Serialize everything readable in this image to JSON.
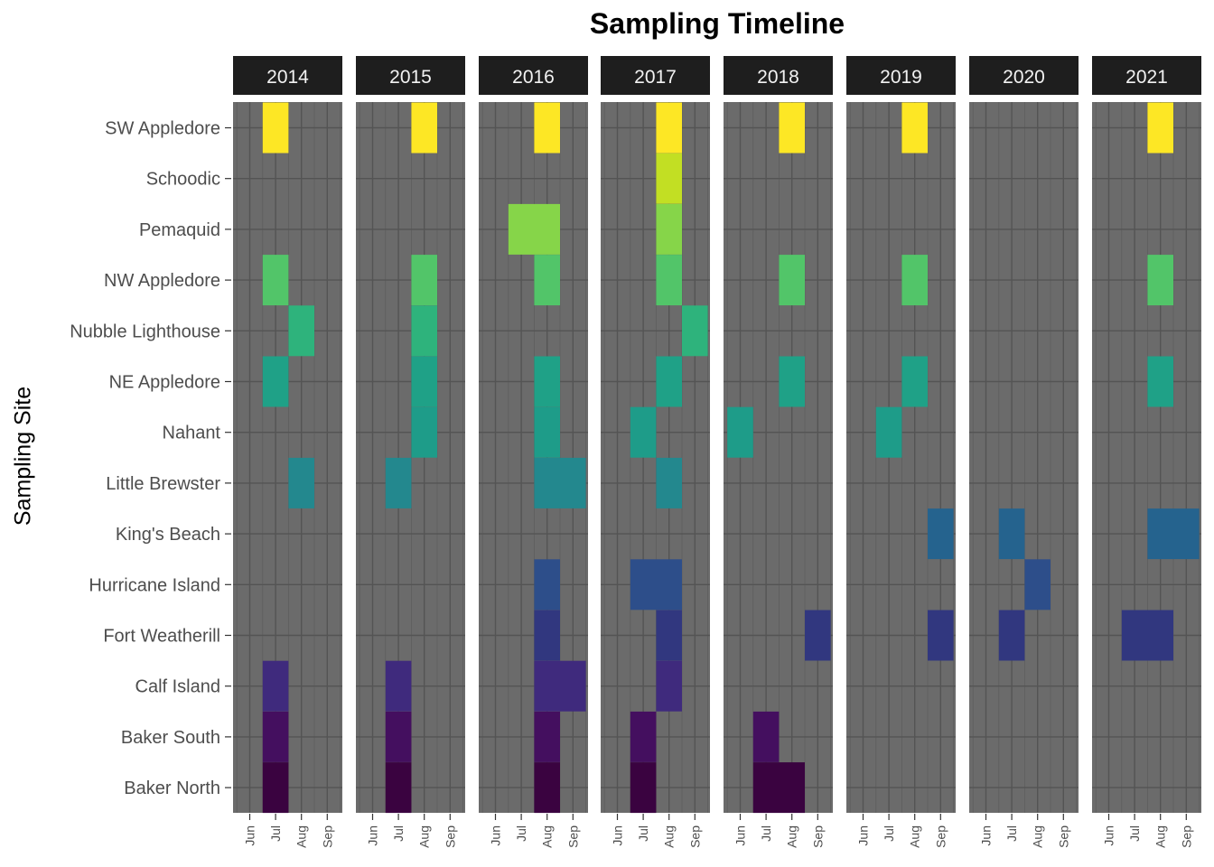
{
  "chart_data": {
    "type": "heatmap",
    "title": "Sampling Timeline",
    "xlabel": "",
    "ylabel": "Sampling Site",
    "facets": [
      "2014",
      "2015",
      "2016",
      "2017",
      "2018",
      "2019",
      "2020",
      "2021"
    ],
    "months": [
      "Jun",
      "Jul",
      "Aug",
      "Sep"
    ],
    "sites": [
      "SW Appledore",
      "Schoodic",
      "Pemaquid",
      "NW Appledore",
      "Nubble Lighthouse",
      "NE Appledore",
      "Nahant",
      "Little Brewster",
      "King's Beach",
      "Hurricane Island",
      "Fort Weatherill",
      "Calf Island",
      "Baker South",
      "Baker North"
    ],
    "site_colors": {
      "SW Appledore": "#FDE725",
      "Schoodic": "#C2DF23",
      "Pemaquid": "#86D549",
      "NW Appledore": "#52C569",
      "Nubble Lighthouse": "#2EB37C",
      "NE Appledore": "#1FA187",
      "Nahant": "#1E9C89",
      "Little Brewster": "#23888E",
      "King's Beach": "#25638E",
      "Hurricane Island": "#2D4E8A",
      "Fort Weatherill": "#31377F",
      "Calf Island": "#3F2A7D",
      "Baker South": "#440F5F",
      "Baker North": "#3A0340"
    },
    "panel_background": "#6B6B6B",
    "strip_background": "#1E1E1E",
    "records": [
      {
        "year": "2014",
        "site": "SW Appledore",
        "start": "Jul",
        "end": "Jul"
      },
      {
        "year": "2014",
        "site": "NW Appledore",
        "start": "Jul",
        "end": "Jul"
      },
      {
        "year": "2014",
        "site": "Nubble Lighthouse",
        "start": "Aug",
        "end": "Aug"
      },
      {
        "year": "2014",
        "site": "NE Appledore",
        "start": "Jul",
        "end": "Jul"
      },
      {
        "year": "2014",
        "site": "Little Brewster",
        "start": "Aug",
        "end": "Aug"
      },
      {
        "year": "2014",
        "site": "Calf Island",
        "start": "Jul",
        "end": "Jul"
      },
      {
        "year": "2014",
        "site": "Baker South",
        "start": "Jul",
        "end": "Jul"
      },
      {
        "year": "2014",
        "site": "Baker North",
        "start": "Jul",
        "end": "Jul"
      },
      {
        "year": "2015",
        "site": "SW Appledore",
        "start": "Aug",
        "end": "Aug"
      },
      {
        "year": "2015",
        "site": "NW Appledore",
        "start": "Aug",
        "end": "Aug"
      },
      {
        "year": "2015",
        "site": "Nubble Lighthouse",
        "start": "Aug",
        "end": "Aug"
      },
      {
        "year": "2015",
        "site": "NE Appledore",
        "start": "Aug",
        "end": "Aug"
      },
      {
        "year": "2015",
        "site": "Nahant",
        "start": "Aug",
        "end": "Aug"
      },
      {
        "year": "2015",
        "site": "Little Brewster",
        "start": "Jul",
        "end": "Jul"
      },
      {
        "year": "2015",
        "site": "Calf Island",
        "start": "Jul",
        "end": "Jul"
      },
      {
        "year": "2015",
        "site": "Baker South",
        "start": "Jul",
        "end": "Jul"
      },
      {
        "year": "2015",
        "site": "Baker North",
        "start": "Jul",
        "end": "Jul"
      },
      {
        "year": "2016",
        "site": "SW Appledore",
        "start": "Aug",
        "end": "Aug"
      },
      {
        "year": "2016",
        "site": "Pemaquid",
        "start": "Jul",
        "end": "Aug"
      },
      {
        "year": "2016",
        "site": "NW Appledore",
        "start": "Aug",
        "end": "Aug"
      },
      {
        "year": "2016",
        "site": "NE Appledore",
        "start": "Aug",
        "end": "Aug"
      },
      {
        "year": "2016",
        "site": "Nahant",
        "start": "Aug",
        "end": "Aug"
      },
      {
        "year": "2016",
        "site": "Little Brewster",
        "start": "Aug",
        "end": "Sep"
      },
      {
        "year": "2016",
        "site": "Hurricane Island",
        "start": "Aug",
        "end": "Aug"
      },
      {
        "year": "2016",
        "site": "Fort Weatherill",
        "start": "Aug",
        "end": "Aug"
      },
      {
        "year": "2016",
        "site": "Calf Island",
        "start": "Aug",
        "end": "Sep"
      },
      {
        "year": "2016",
        "site": "Baker South",
        "start": "Aug",
        "end": "Aug"
      },
      {
        "year": "2016",
        "site": "Baker North",
        "start": "Aug",
        "end": "Aug"
      },
      {
        "year": "2017",
        "site": "SW Appledore",
        "start": "Aug",
        "end": "Aug"
      },
      {
        "year": "2017",
        "site": "Schoodic",
        "start": "Aug",
        "end": "Aug"
      },
      {
        "year": "2017",
        "site": "Pemaquid",
        "start": "Aug",
        "end": "Aug"
      },
      {
        "year": "2017",
        "site": "NW Appledore",
        "start": "Aug",
        "end": "Aug"
      },
      {
        "year": "2017",
        "site": "Nubble Lighthouse",
        "start": "Sep",
        "end": "Sep"
      },
      {
        "year": "2017",
        "site": "NE Appledore",
        "start": "Aug",
        "end": "Aug"
      },
      {
        "year": "2017",
        "site": "Nahant",
        "start": "Jul",
        "end": "Jul"
      },
      {
        "year": "2017",
        "site": "Little Brewster",
        "start": "Aug",
        "end": "Aug"
      },
      {
        "year": "2017",
        "site": "Hurricane Island",
        "start": "Jul",
        "end": "Aug"
      },
      {
        "year": "2017",
        "site": "Fort Weatherill",
        "start": "Aug",
        "end": "Aug"
      },
      {
        "year": "2017",
        "site": "Calf Island",
        "start": "Aug",
        "end": "Aug"
      },
      {
        "year": "2017",
        "site": "Baker South",
        "start": "Jul",
        "end": "Jul"
      },
      {
        "year": "2017",
        "site": "Baker North",
        "start": "Jul",
        "end": "Jul"
      },
      {
        "year": "2018",
        "site": "SW Appledore",
        "start": "Aug",
        "end": "Aug"
      },
      {
        "year": "2018",
        "site": "NW Appledore",
        "start": "Aug",
        "end": "Aug"
      },
      {
        "year": "2018",
        "site": "NE Appledore",
        "start": "Aug",
        "end": "Aug"
      },
      {
        "year": "2018",
        "site": "Nahant",
        "start": "Jun",
        "end": "Jun"
      },
      {
        "year": "2018",
        "site": "Fort Weatherill",
        "start": "Sep",
        "end": "Sep"
      },
      {
        "year": "2018",
        "site": "Baker South",
        "start": "Jul",
        "end": "Jul"
      },
      {
        "year": "2018",
        "site": "Baker North",
        "start": "Jul",
        "end": "Aug"
      },
      {
        "year": "2019",
        "site": "SW Appledore",
        "start": "Aug",
        "end": "Aug"
      },
      {
        "year": "2019",
        "site": "NW Appledore",
        "start": "Aug",
        "end": "Aug"
      },
      {
        "year": "2019",
        "site": "NE Appledore",
        "start": "Aug",
        "end": "Aug"
      },
      {
        "year": "2019",
        "site": "Nahant",
        "start": "Jul",
        "end": "Jul"
      },
      {
        "year": "2019",
        "site": "King's Beach",
        "start": "Sep",
        "end": "Sep"
      },
      {
        "year": "2019",
        "site": "Fort Weatherill",
        "start": "Sep",
        "end": "Sep"
      },
      {
        "year": "2020",
        "site": "King's Beach",
        "start": "Jul",
        "end": "Jul"
      },
      {
        "year": "2020",
        "site": "Hurricane Island",
        "start": "Aug",
        "end": "Aug"
      },
      {
        "year": "2020",
        "site": "Fort Weatherill",
        "start": "Jul",
        "end": "Jul"
      },
      {
        "year": "2021",
        "site": "SW Appledore",
        "start": "Aug",
        "end": "Aug"
      },
      {
        "year": "2021",
        "site": "NW Appledore",
        "start": "Aug",
        "end": "Aug"
      },
      {
        "year": "2021",
        "site": "NE Appledore",
        "start": "Aug",
        "end": "Aug"
      },
      {
        "year": "2021",
        "site": "King's Beach",
        "start": "Aug",
        "end": "Sep"
      },
      {
        "year": "2021",
        "site": "Fort Weatherill",
        "start": "Jul",
        "end": "Aug"
      }
    ]
  }
}
